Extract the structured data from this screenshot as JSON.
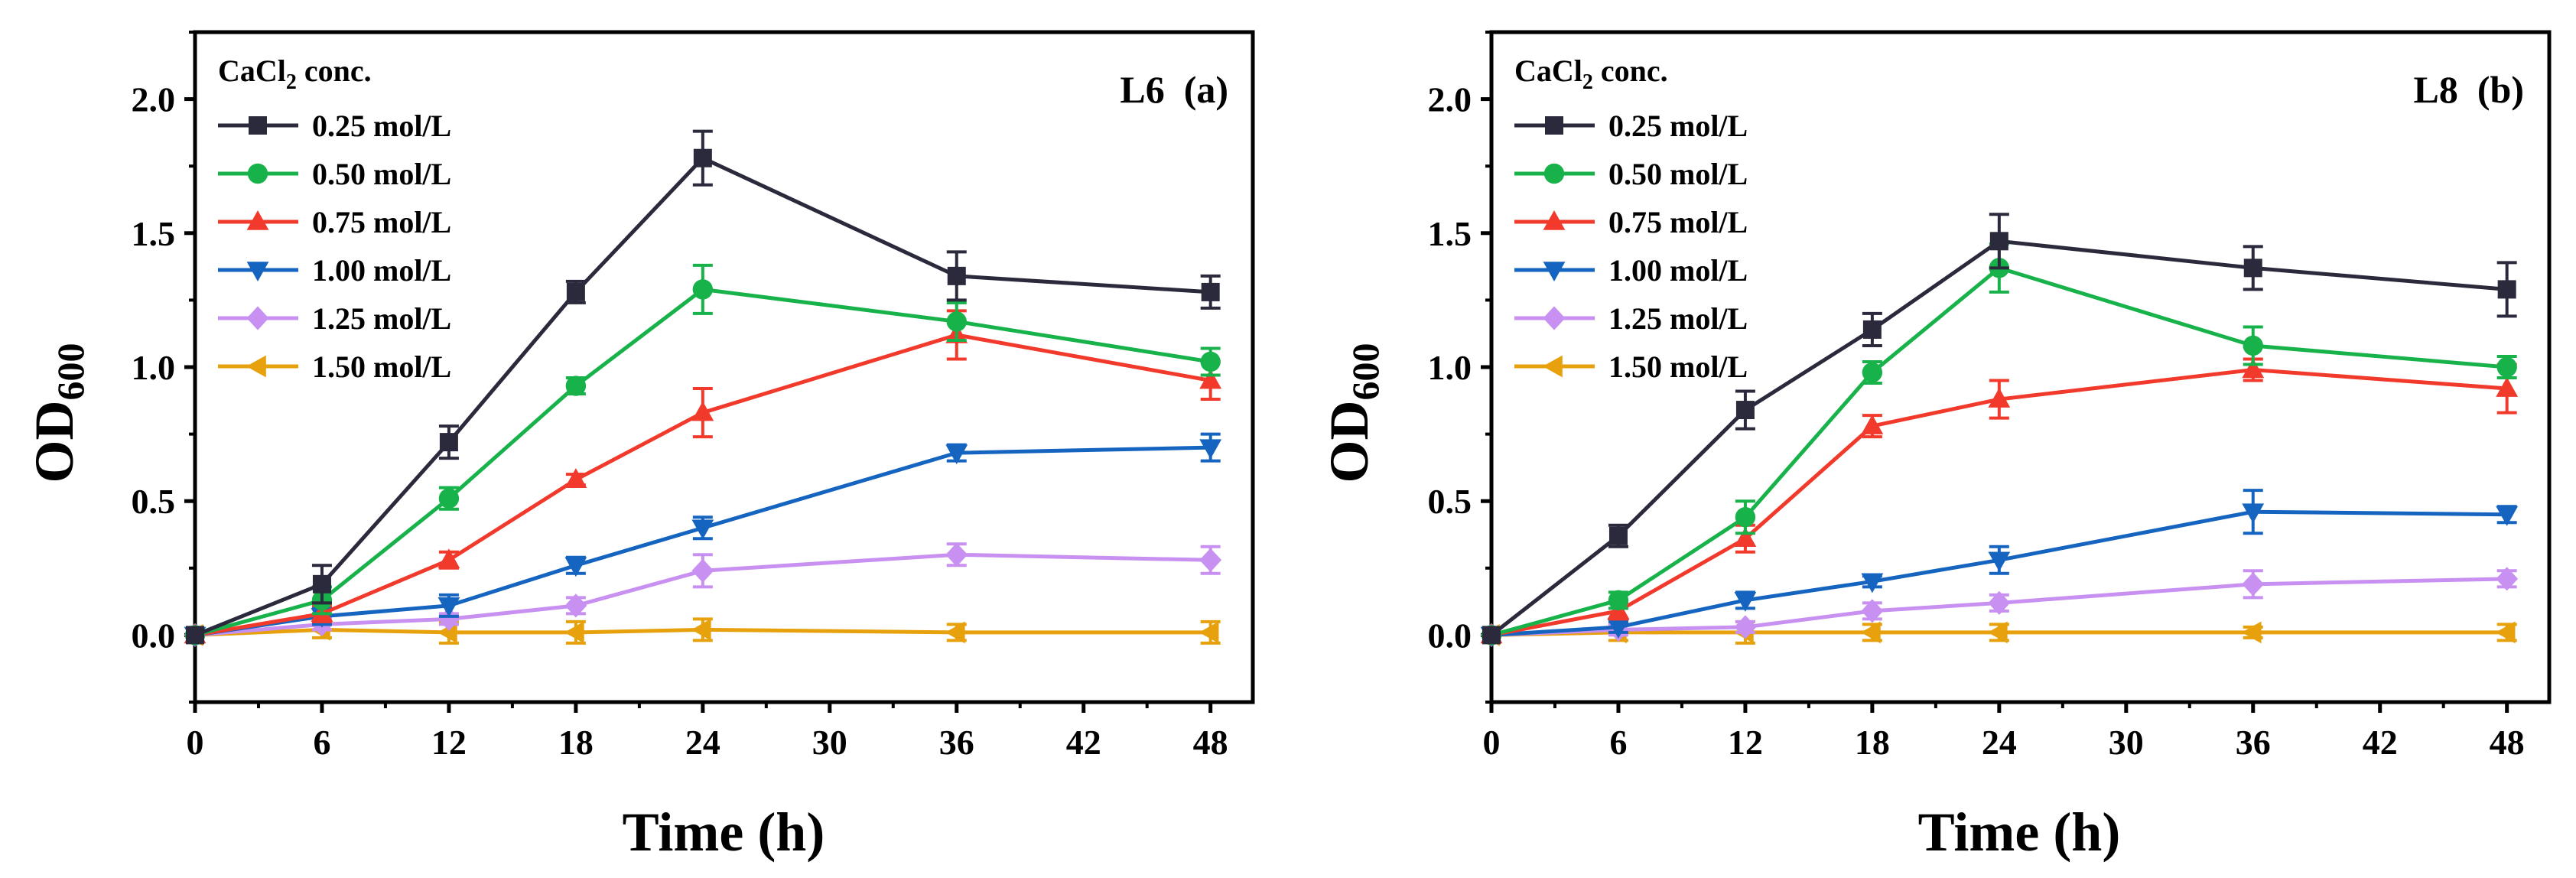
{
  "figure": {
    "background": "#ffffff"
  },
  "chart_data": [
    {
      "type": "line",
      "panel_label": "L6  (a)",
      "legend_title_main": "CaCl",
      "legend_title_sub": "2",
      "legend_title_rest": " conc.",
      "xlabel": "Time (h)",
      "ylabel_main": "OD",
      "ylabel_sub": "600",
      "xlim": [
        0,
        50
      ],
      "ylim": [
        -0.25,
        2.25
      ],
      "xticks": [
        0,
        6,
        12,
        18,
        24,
        30,
        36,
        42,
        48
      ],
      "xtick_labels": [
        "0",
        "6",
        "12",
        "18",
        "24",
        "30",
        "36",
        "42",
        "48"
      ],
      "yticks": [
        0.0,
        0.5,
        1.0,
        1.5,
        2.0
      ],
      "ytick_labels": [
        "0.0",
        "0.5",
        "1.0",
        "1.5",
        "2.0"
      ],
      "legend_position": "top-left",
      "x": [
        0,
        6,
        12,
        18,
        24,
        36,
        48
      ],
      "series": [
        {
          "name": "0.25 mol/L",
          "color": "#2a2a3c",
          "marker": "square",
          "values": [
            0.0,
            0.19,
            0.72,
            1.28,
            1.78,
            1.34,
            1.28
          ],
          "errors": [
            0.0,
            0.07,
            0.06,
            0.04,
            0.1,
            0.09,
            0.06
          ]
        },
        {
          "name": "0.50 mol/L",
          "color": "#18b24b",
          "marker": "circle",
          "values": [
            0.0,
            0.13,
            0.51,
            0.93,
            1.29,
            1.17,
            1.02
          ],
          "errors": [
            0.0,
            0.05,
            0.04,
            0.03,
            0.09,
            0.07,
            0.05
          ]
        },
        {
          "name": "0.75 mol/L",
          "color": "#f23a2c",
          "marker": "triangle-up",
          "values": [
            0.0,
            0.08,
            0.28,
            0.58,
            0.83,
            1.12,
            0.95
          ],
          "errors": [
            0.0,
            0.03,
            0.03,
            0.02,
            0.09,
            0.09,
            0.07
          ]
        },
        {
          "name": "1.00 mol/L",
          "color": "#1565c0",
          "marker": "triangle-down",
          "values": [
            0.0,
            0.07,
            0.11,
            0.26,
            0.4,
            0.68,
            0.7
          ],
          "errors": [
            0.0,
            0.03,
            0.04,
            0.03,
            0.04,
            0.03,
            0.05
          ]
        },
        {
          "name": "1.25 mol/L",
          "color": "#c890f0",
          "marker": "diamond",
          "values": [
            0.0,
            0.04,
            0.06,
            0.11,
            0.24,
            0.3,
            0.28
          ],
          "errors": [
            0.0,
            0.02,
            0.02,
            0.03,
            0.06,
            0.04,
            0.05
          ]
        },
        {
          "name": "1.50 mol/L",
          "color": "#e6a10c",
          "marker": "triangle-left",
          "values": [
            0.0,
            0.02,
            0.01,
            0.01,
            0.02,
            0.01,
            0.01
          ],
          "errors": [
            0.0,
            0.03,
            0.04,
            0.04,
            0.04,
            0.03,
            0.04
          ]
        }
      ]
    },
    {
      "type": "line",
      "panel_label": "L8  (b)",
      "legend_title_main": "CaCl",
      "legend_title_sub": "2",
      "legend_title_rest": " conc.",
      "xlabel": "Time (h)",
      "ylabel_main": "OD",
      "ylabel_sub": "600",
      "xlim": [
        0,
        50
      ],
      "ylim": [
        -0.25,
        2.25
      ],
      "xticks": [
        0,
        6,
        12,
        18,
        24,
        30,
        36,
        42,
        48
      ],
      "xtick_labels": [
        "0",
        "6",
        "12",
        "18",
        "24",
        "30",
        "36",
        "42",
        "48"
      ],
      "yticks": [
        0.0,
        0.5,
        1.0,
        1.5,
        2.0
      ],
      "ytick_labels": [
        "0.0",
        "0.5",
        "1.0",
        "1.5",
        "2.0"
      ],
      "legend_position": "top-left",
      "x": [
        0,
        6,
        12,
        18,
        24,
        36,
        48
      ],
      "series": [
        {
          "name": "0.25 mol/L",
          "color": "#2a2a3c",
          "marker": "square",
          "values": [
            0.0,
            0.37,
            0.84,
            1.14,
            1.47,
            1.37,
            1.29
          ],
          "errors": [
            0.0,
            0.04,
            0.07,
            0.06,
            0.1,
            0.08,
            0.1
          ]
        },
        {
          "name": "0.50 mol/L",
          "color": "#18b24b",
          "marker": "circle",
          "values": [
            0.0,
            0.13,
            0.44,
            0.98,
            1.37,
            1.08,
            1.0
          ],
          "errors": [
            0.0,
            0.03,
            0.06,
            0.04,
            0.09,
            0.07,
            0.04
          ]
        },
        {
          "name": "0.75 mol/L",
          "color": "#f23a2c",
          "marker": "triangle-up",
          "values": [
            0.0,
            0.09,
            0.36,
            0.78,
            0.88,
            0.99,
            0.92
          ],
          "errors": [
            0.0,
            0.03,
            0.05,
            0.04,
            0.07,
            0.04,
            0.09
          ]
        },
        {
          "name": "1.00 mol/L",
          "color": "#1565c0",
          "marker": "triangle-down",
          "values": [
            0.0,
            0.03,
            0.13,
            0.2,
            0.28,
            0.46,
            0.45
          ],
          "errors": [
            0.0,
            0.02,
            0.03,
            0.02,
            0.05,
            0.08,
            0.03
          ]
        },
        {
          "name": "1.25 mol/L",
          "color": "#c890f0",
          "marker": "diamond",
          "values": [
            0.0,
            0.02,
            0.03,
            0.09,
            0.12,
            0.19,
            0.21
          ],
          "errors": [
            0.0,
            0.02,
            0.02,
            0.03,
            0.03,
            0.05,
            0.03
          ]
        },
        {
          "name": "1.50 mol/L",
          "color": "#e6a10c",
          "marker": "triangle-left",
          "values": [
            0.0,
            0.01,
            0.01,
            0.01,
            0.01,
            0.01,
            0.01
          ],
          "errors": [
            0.0,
            0.03,
            0.04,
            0.03,
            0.03,
            0.02,
            0.03
          ]
        }
      ]
    }
  ]
}
